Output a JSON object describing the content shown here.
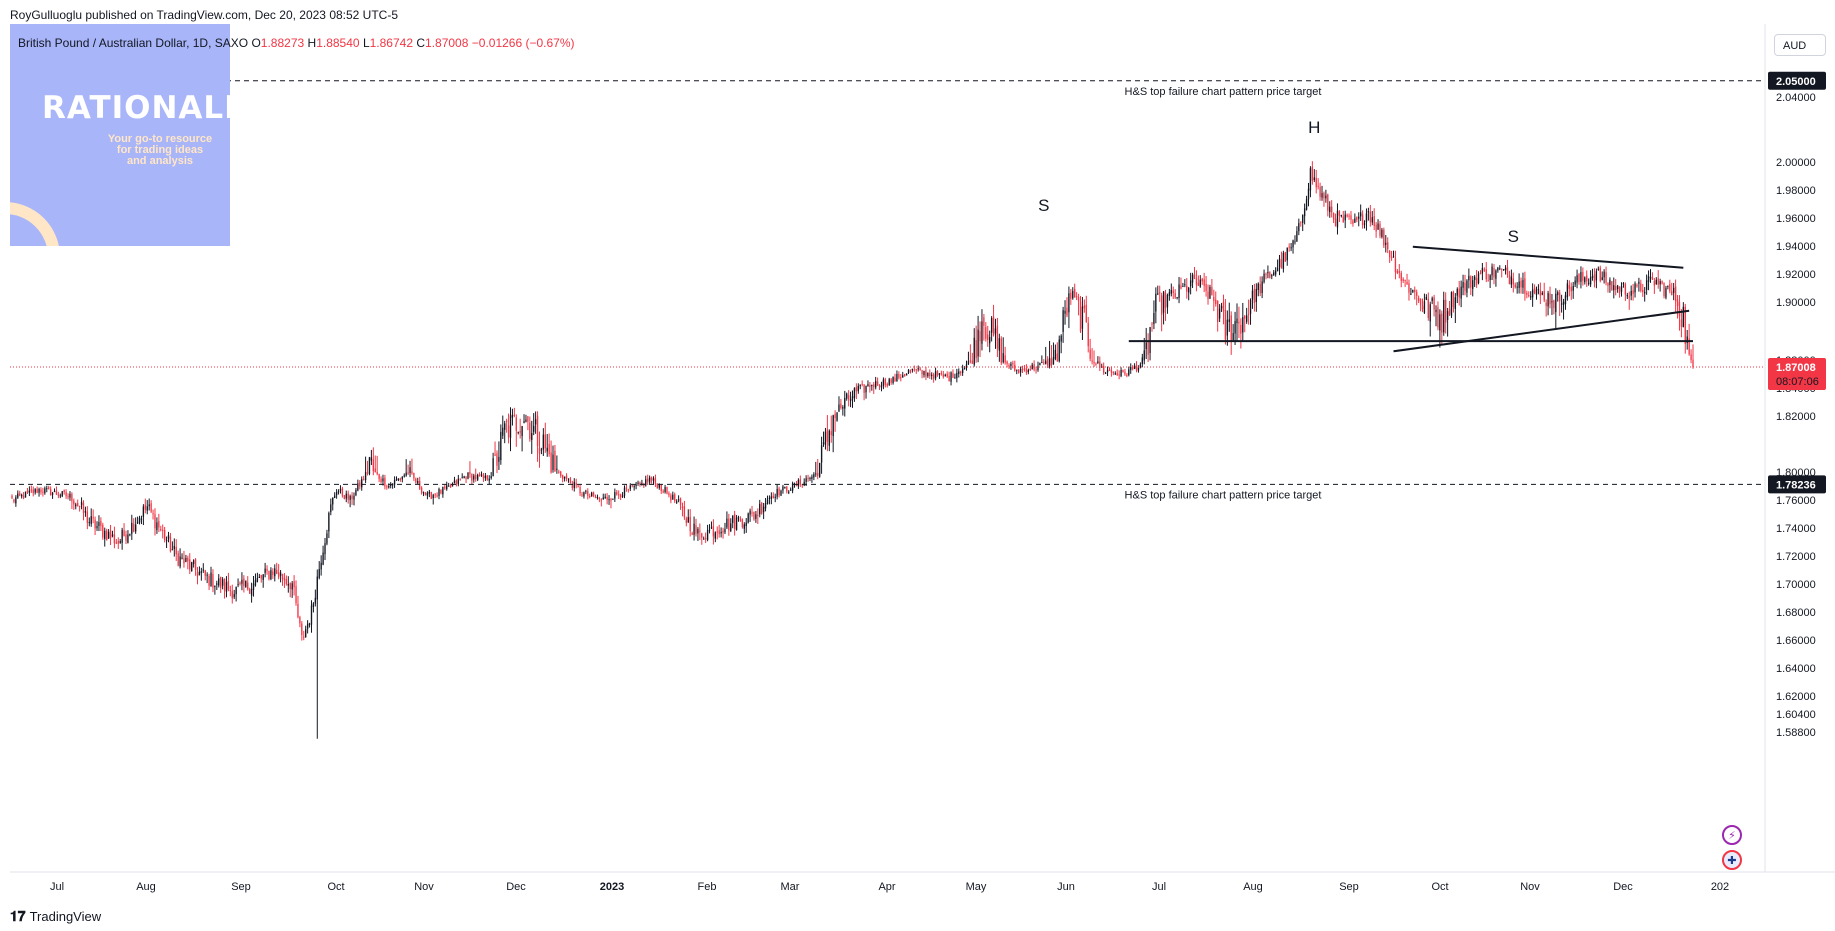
{
  "publisher": "RoyGulluoglu published on TradingView.com, Dec 20, 2023 08:52 UTC-5",
  "symbol": {
    "name": "British Pound / Australian Dollar, 1D, SAXO",
    "open_label": "O",
    "open": "1.88273",
    "high_label": "H",
    "high": "1.88540",
    "low_label": "L",
    "low": "1.86742",
    "close_label": "C",
    "close": "1.87008",
    "change": "−0.01266 (−0.67%)"
  },
  "currency_button": "AUD",
  "logo": {
    "title": "RATIONALE",
    "tagline_1": "Your go-to resource",
    "tagline_2": "for trading ideas",
    "tagline_3": "and analysis"
  },
  "brand": "TradingView",
  "colors": {
    "up": "#131722",
    "down": "#f23645",
    "price_label": "#f23645",
    "logo_bg": "#a9b5f9",
    "logo_accent": "#ffe6c7"
  },
  "chart_data": {
    "type": "candlestick",
    "symbol": "GBPAUD",
    "interval": "1D",
    "y_axis": {
      "ticks": [
        "2.04000",
        "2.00000",
        "1.98000",
        "1.96000",
        "1.94000",
        "1.92000",
        "1.90000",
        "1.88000",
        "1.84000",
        "1.82000",
        "1.80000",
        "1.76000",
        "1.74000",
        "1.72000",
        "1.70000",
        "1.68000",
        "1.66000",
        "1.64000",
        "1.62000",
        "1.60400",
        "1.58800"
      ],
      "range": [
        1.585,
        2.06
      ],
      "position": "right"
    },
    "x_axis": {
      "labels": [
        "Jul",
        "Aug",
        "Sep",
        "Oct",
        "Nov",
        "Dec",
        "2023",
        "Feb",
        "Mar",
        "Apr",
        "May",
        "Jun",
        "Jul",
        "Aug",
        "Sep",
        "Oct",
        "Nov",
        "Dec",
        "202"
      ]
    },
    "current_price": {
      "value": 1.87008,
      "label": "1.87008",
      "countdown": "08:07:06"
    },
    "levels": [
      {
        "value": 2.05,
        "label": "2.05000",
        "annotation": "H&S top failure chart pattern price target"
      },
      {
        "value": 1.78236,
        "label": "1.78236",
        "annotation": "H&S top failure chart pattern price target"
      }
    ],
    "neckline": {
      "value": 1.8865
    },
    "pattern_labels": [
      {
        "text": "S"
      },
      {
        "text": "H"
      },
      {
        "text": "S"
      }
    ],
    "triangle": {
      "upper": [
        1.9395,
        1.9245
      ],
      "lower": [
        1.883,
        1.897
      ]
    },
    "waypoints": [
      [
        0,
        1.76
      ],
      [
        14,
        1.775
      ],
      [
        30,
        1.765
      ],
      [
        40,
        1.745
      ],
      [
        55,
        1.73
      ],
      [
        70,
        1.755
      ],
      [
        85,
        1.72
      ],
      [
        100,
        1.705
      ],
      [
        115,
        1.695
      ],
      [
        125,
        1.7
      ],
      [
        135,
        1.71
      ],
      [
        145,
        1.7
      ],
      [
        150,
        1.66
      ],
      [
        155,
        1.68
      ],
      [
        160,
        1.72
      ],
      [
        168,
        1.775
      ],
      [
        175,
        1.76
      ],
      [
        185,
        1.805
      ],
      [
        195,
        1.78
      ],
      [
        205,
        1.8
      ],
      [
        215,
        1.765
      ],
      [
        225,
        1.775
      ],
      [
        235,
        1.795
      ],
      [
        245,
        1.79
      ],
      [
        255,
        1.815
      ],
      [
        265,
        1.82
      ],
      [
        275,
        1.81
      ],
      [
        285,
        1.795
      ],
      [
        295,
        1.77
      ],
      [
        305,
        1.76
      ],
      [
        315,
        1.77
      ],
      [
        325,
        1.78
      ],
      [
        330,
        1.79
      ],
      [
        335,
        1.78
      ],
      [
        345,
        1.755
      ],
      [
        355,
        1.735
      ],
      [
        365,
        1.74
      ],
      [
        375,
        1.745
      ],
      [
        385,
        1.75
      ],
      [
        395,
        1.77
      ],
      [
        405,
        1.78
      ],
      [
        415,
        1.795
      ],
      [
        425,
        1.82
      ],
      [
        435,
        1.835
      ],
      [
        445,
        1.845
      ],
      [
        455,
        1.85
      ],
      [
        465,
        1.865
      ],
      [
        475,
        1.86
      ],
      [
        485,
        1.855
      ],
      [
        495,
        1.875
      ],
      [
        502,
        1.895
      ],
      [
        510,
        1.885
      ],
      [
        520,
        1.865
      ],
      [
        530,
        1.87
      ],
      [
        540,
        1.88
      ],
      [
        548,
        1.905
      ],
      [
        556,
        1.89
      ],
      [
        565,
        1.865
      ],
      [
        575,
        1.86
      ],
      [
        585,
        1.875
      ],
      [
        592,
        1.9
      ],
      [
        602,
        1.905
      ],
      [
        612,
        1.915
      ],
      [
        620,
        1.905
      ],
      [
        628,
        1.89
      ],
      [
        638,
        1.895
      ],
      [
        648,
        1.915
      ],
      [
        658,
        1.93
      ],
      [
        665,
        1.945
      ],
      [
        672,
        1.992
      ],
      [
        678,
        1.975
      ],
      [
        685,
        1.96
      ],
      [
        695,
        1.955
      ],
      [
        702,
        1.965
      ],
      [
        710,
        1.945
      ],
      [
        720,
        1.915
      ],
      [
        730,
        1.9
      ],
      [
        740,
        1.895
      ],
      [
        750,
        1.91
      ],
      [
        760,
        1.92
      ],
      [
        770,
        1.922
      ],
      [
        780,
        1.915
      ],
      [
        790,
        1.905
      ],
      [
        800,
        1.902
      ],
      [
        810,
        1.915
      ],
      [
        820,
        1.92
      ],
      [
        830,
        1.91
      ],
      [
        840,
        1.908
      ],
      [
        850,
        1.915
      ],
      [
        860,
        1.905
      ],
      [
        865,
        1.895
      ],
      [
        870,
        1.87
      ]
    ]
  }
}
